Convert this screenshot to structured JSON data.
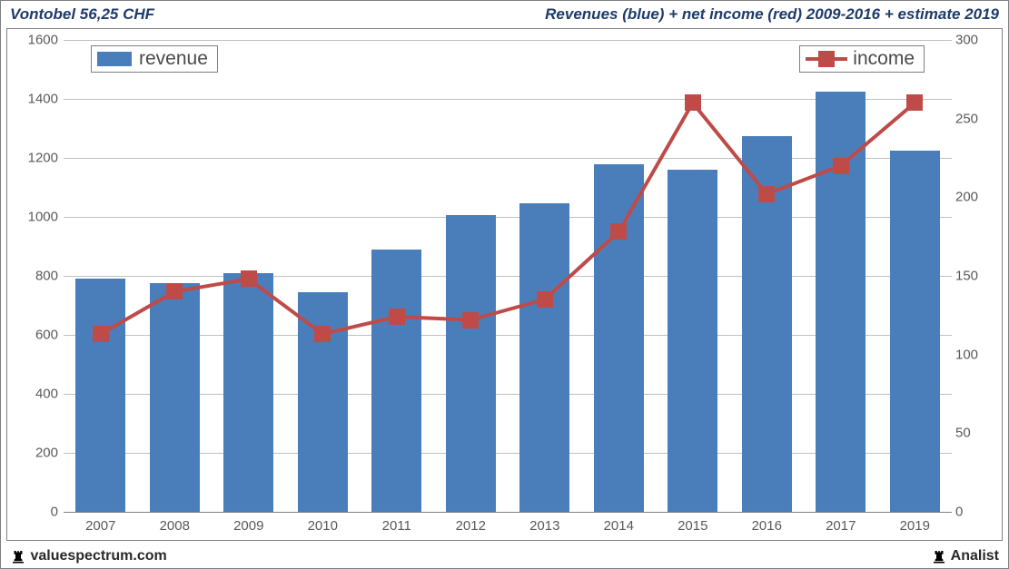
{
  "header": {
    "title_left": "Vontobel 56,25 CHF",
    "title_right": "Revenues (blue) + net income (red) 2009-2016 + estimate 2019",
    "title_color": "#1f3b6a",
    "title_fontsize": 17
  },
  "footer": {
    "left_text": "valuespectrum.com",
    "right_text": "Analist",
    "icon_color": "#000000",
    "text_fontsize": 16
  },
  "chart": {
    "background_color": "#ffffff",
    "border_color": "#808080",
    "grid_color": "#c0c0c0",
    "axis_label_fontsize": 15,
    "axis_label_color": "#5a5a5a",
    "categories": [
      "2007",
      "2008",
      "2009",
      "2010",
      "2011",
      "2012",
      "2013",
      "2014",
      "2015",
      "2016",
      "2017",
      "2019"
    ],
    "y_left": {
      "min": 0,
      "max": 1600,
      "step": 200
    },
    "y_right": {
      "min": 0,
      "max": 300,
      "step": 50
    },
    "bars": {
      "series_name": "revenue",
      "color": "#4a7ebb",
      "values": [
        790,
        775,
        810,
        745,
        890,
        1005,
        1045,
        1180,
        1160,
        1275,
        1425,
        1225
      ],
      "bar_width_frac": 0.68
    },
    "line": {
      "series_name": "income",
      "line_color": "#be4b48",
      "marker_color": "#be4b48",
      "line_width": 4,
      "marker_size": 18,
      "values": [
        113,
        140,
        148,
        113,
        124,
        122,
        135,
        178,
        260,
        202,
        220,
        260
      ]
    },
    "legend": {
      "revenue": {
        "label": "revenue",
        "pos": "top-left"
      },
      "income": {
        "label": "income",
        "pos": "top-right"
      },
      "fontsize": 21,
      "text_color": "#4a4a4a",
      "border_color": "#808080"
    }
  }
}
